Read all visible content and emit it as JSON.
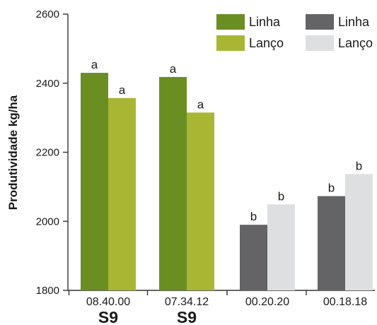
{
  "chart_data": {
    "type": "bar",
    "title": "",
    "xlabel": "",
    "ylabel": "Produtividade kg/ha",
    "ylim": [
      1800,
      2600
    ],
    "yticks": [
      1800,
      2000,
      2200,
      2400,
      2600
    ],
    "grid": false,
    "legend_position": "top-right",
    "categories": [
      "08.40.00",
      "07.34.12",
      "00.20.20",
      "00.18.18"
    ],
    "category_sublabels": [
      "S9",
      "S9",
      "",
      ""
    ],
    "groups": [
      {
        "category": "08.40.00",
        "bars": [
          {
            "series": "Linha",
            "value": 2430,
            "label": "a",
            "color": "#6b8e23"
          },
          {
            "series": "Lanço",
            "value": 2357,
            "label": "a",
            "color": "#a9b633"
          }
        ]
      },
      {
        "category": "07.34.12",
        "bars": [
          {
            "series": "Linha",
            "value": 2418,
            "label": "a",
            "color": "#6b8e23"
          },
          {
            "series": "Lanço",
            "value": 2315,
            "label": "a",
            "color": "#a9b633"
          }
        ]
      },
      {
        "category": "00.20.20",
        "bars": [
          {
            "series": "Linha",
            "value": 1990,
            "label": "b",
            "color": "#646466"
          },
          {
            "series": "Lanço",
            "value": 2049,
            "label": "b",
            "color": "#dedfe1"
          }
        ]
      },
      {
        "category": "00.18.18",
        "bars": [
          {
            "series": "Linha",
            "value": 2073,
            "label": "b",
            "color": "#646466"
          },
          {
            "series": "Lanço",
            "value": 2137,
            "label": "b",
            "color": "#dedfe1"
          }
        ]
      }
    ],
    "legend": [
      {
        "label": "Linha",
        "color": "#6b8e23"
      },
      {
        "label": "Lanço",
        "color": "#a9b633"
      },
      {
        "label": "Linha",
        "color": "#646466"
      },
      {
        "label": "Lanço",
        "color": "#dedfe1"
      }
    ],
    "axis_color": "#333333"
  }
}
